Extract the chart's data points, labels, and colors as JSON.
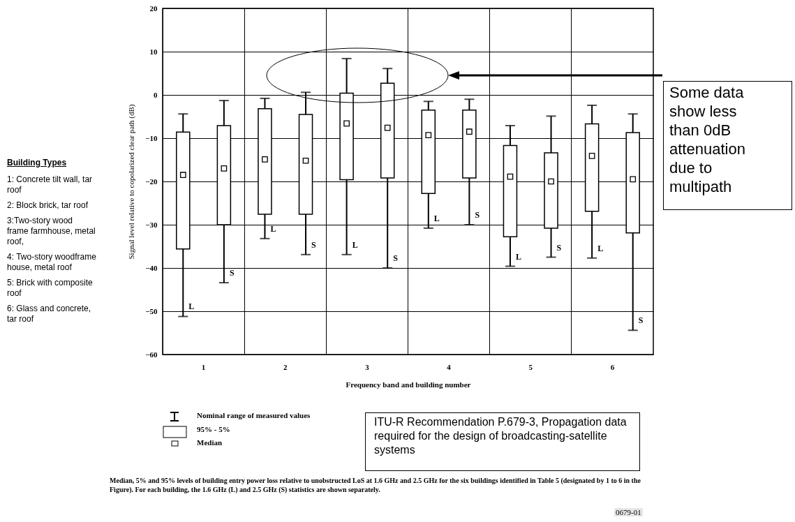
{
  "chart_data": {
    "type": "box",
    "categories": [
      "1",
      "2",
      "3",
      "4",
      "5",
      "6"
    ],
    "xlabel": "Frequency band and building number",
    "ylabel": "Signal level relative to copolarized clear path (dB)",
    "ylim": [
      -60,
      20
    ],
    "yticks": [
      -60,
      -50,
      -40,
      -30,
      -20,
      -10,
      0,
      10,
      20
    ],
    "grid": true,
    "series": [
      {
        "name": "L",
        "color": "#000000",
        "boxes": [
          {
            "low": -51.2,
            "q1": -35.6,
            "median": -18.5,
            "q3": -8.6,
            "high": -4.4
          },
          {
            "low": -33.2,
            "q1": -27.6,
            "median": -14.9,
            "q3": -3.2,
            "high": -0.8
          },
          {
            "low": -36.9,
            "q1": -19.6,
            "median": -6.6,
            "q3": 0.4,
            "high": 8.4
          },
          {
            "low": -30.8,
            "q1": -22.8,
            "median": -9.3,
            "q3": -3.5,
            "high": -1.5
          },
          {
            "low": -39.6,
            "q1": -32.8,
            "median": -18.9,
            "q3": -11.7,
            "high": -7.1
          },
          {
            "low": -37.7,
            "q1": -26.9,
            "median": -14.1,
            "q3": -6.7,
            "high": -2.4
          }
        ]
      },
      {
        "name": "S",
        "color": "#000000",
        "boxes": [
          {
            "low": -43.4,
            "q1": -30,
            "median": -17,
            "q3": -7.1,
            "high": -1.3
          },
          {
            "low": -36.9,
            "q1": -27.6,
            "median": -15.2,
            "q3": -4.5,
            "high": 0.6
          },
          {
            "low": -40,
            "q1": -19.2,
            "median": -7.6,
            "q3": 2.7,
            "high": 6.1
          },
          {
            "low": -30,
            "q1": -19.2,
            "median": -8.5,
            "q3": -3.5,
            "high": -1
          },
          {
            "low": -37.5,
            "q1": -30.8,
            "median": -20,
            "q3": -13.4,
            "high": -4.9
          },
          {
            "low": -54.4,
            "q1": -31.9,
            "median": -19.5,
            "q3": -8.7,
            "high": -4.4
          }
        ]
      }
    ],
    "annotations": [
      "Building Types",
      "1: Concrete tilt wall, tar roof",
      "2: Block brick, tar roof",
      "3:Two-story wood frame farmhouse, metal roof,",
      " 4: Two-story woodframe house, metal roof",
      "5: Brick with composite roof",
      "6: Glass and concrete, tar roof",
      "Some data show less than 0dB attenuation due to multipath",
      "Nominal range of measured values",
      "95% - 5%",
      "Median",
      "ITU-R Recommendation P.679-3, Propagation data required for the design of broadcasting-satellite systems",
      "Median, 5% and 95% levels of building entry power loss relative to unobstructed LoS at 1.6 GHz and 2.5 GHz for the six buildings identified in Table 5 (designated by 1 to 6 in the Figure). For each building, the 1.6 GHz (L) and 2.5 GHz (S) statistics are shown separately.",
      "0679-01"
    ]
  }
}
